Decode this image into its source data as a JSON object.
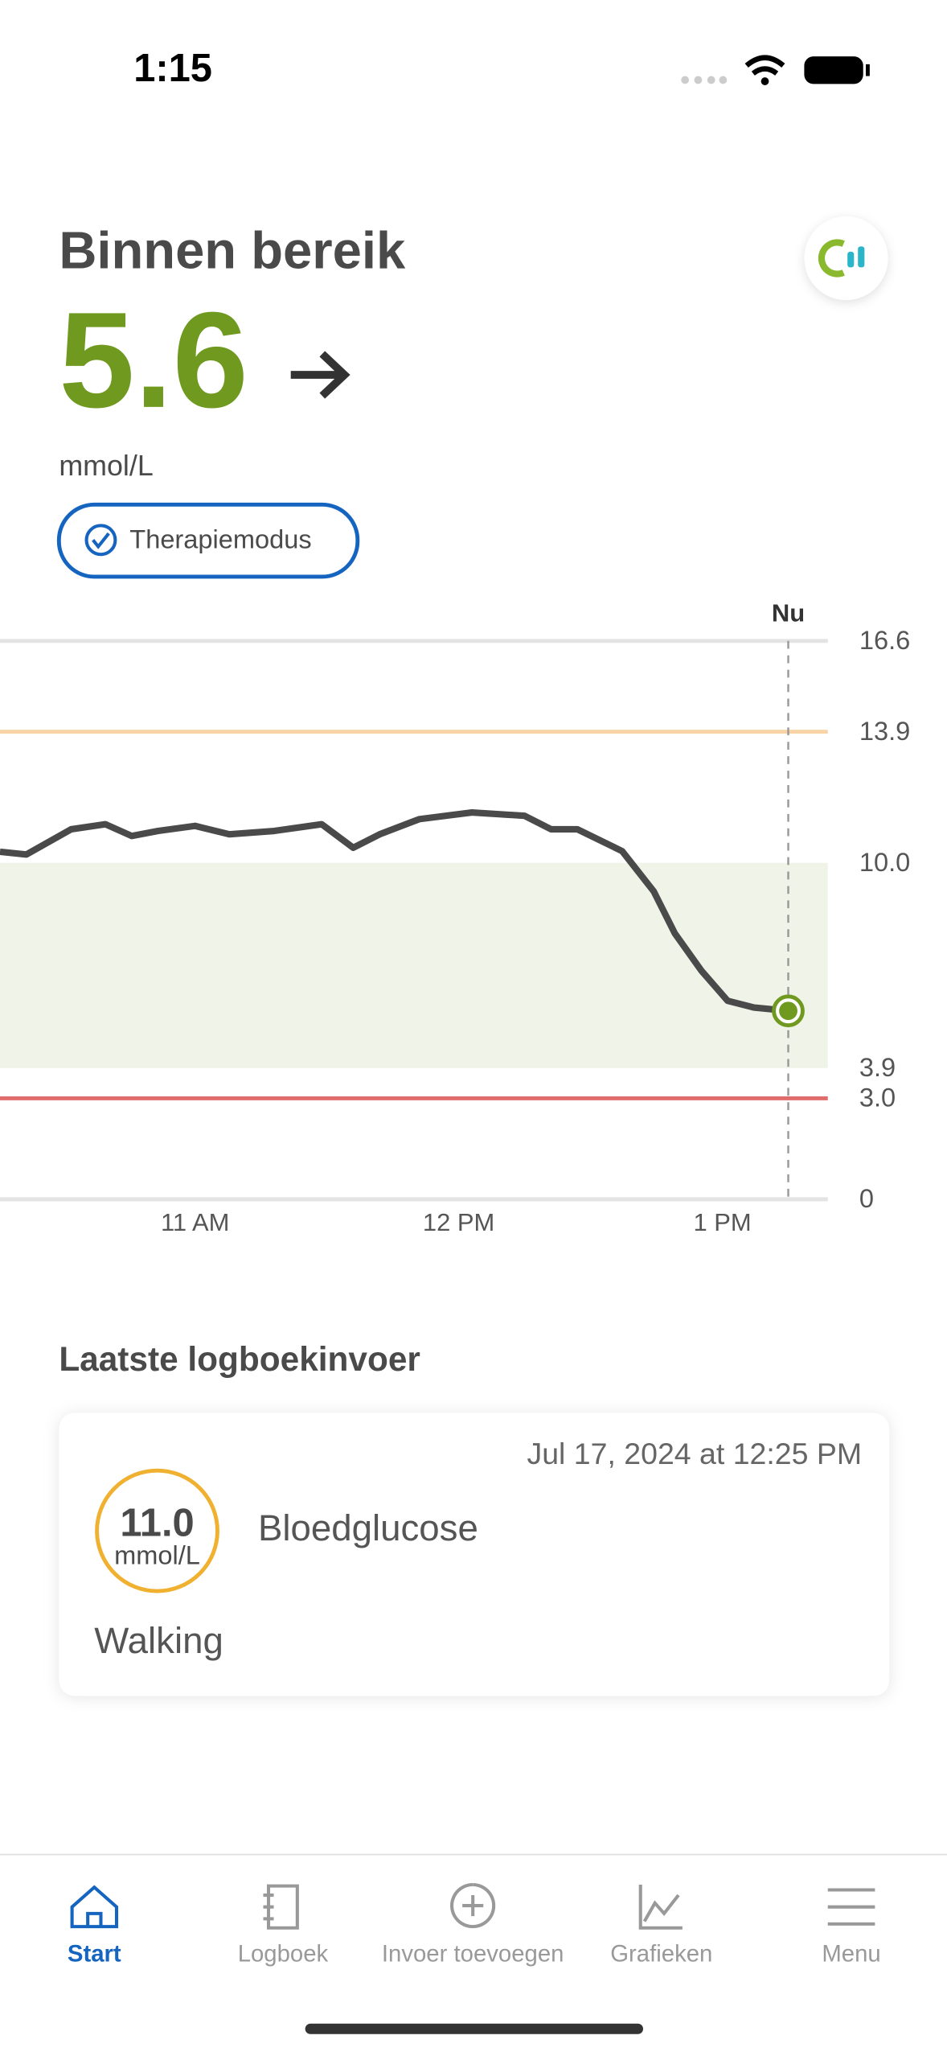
{
  "status_bar": {
    "time": "1:15"
  },
  "header": {
    "title": "Binnen bereik",
    "value": "5.6",
    "unit": "mmol/L",
    "mode": "Therapiemodus"
  },
  "chart_data": {
    "type": "line",
    "x": [
      10.26,
      10.36,
      10.53,
      10.66,
      10.76,
      10.86,
      11.0,
      11.13,
      11.3,
      11.48,
      11.6,
      11.7,
      11.85,
      12.05,
      12.25,
      12.35,
      12.45,
      12.62,
      12.74,
      12.82,
      12.92,
      13.02,
      13.12,
      13.25
    ],
    "series": [
      {
        "color": "#4a4a4a",
        "values": [
          10.33,
          10.25,
          11.0,
          11.15,
          10.8,
          10.95,
          11.1,
          10.85,
          10.95,
          11.15,
          10.45,
          10.85,
          11.3,
          11.5,
          11.4,
          11.0,
          11.0,
          10.35,
          9.15,
          7.9,
          6.8,
          5.9,
          5.7,
          5.6
        ]
      }
    ],
    "xlim": [
      10.26,
      13.4
    ],
    "xticks": [
      {
        "value": 11,
        "label": "11 AM"
      },
      {
        "value": 12,
        "label": "12 PM"
      },
      {
        "value": 13,
        "label": "1 PM"
      }
    ],
    "ylim": [
      0,
      16.6
    ],
    "yticks": [
      16.6,
      13.9,
      {
        "value": 10,
        "label": "10.0"
      },
      3.9,
      {
        "value": 3,
        "label": "3.0"
      },
      0
    ],
    "now_x": 13.25,
    "now_label": "Nu",
    "grid_color": "#e3e3e3",
    "high_color": "#f7d3a5",
    "low_color": "#e06c6c",
    "target_color": "#eff3e8",
    "marker_color": "#6f9a1f"
  },
  "logbook": {
    "title": "Laatste logboekinvoer",
    "date": "Jul 17, 2024 at 12:25 PM",
    "value": "11.0",
    "unit": "mmol/L",
    "type": "Bloedglucose",
    "note": "Walking"
  },
  "tabs": [
    "Start",
    "Logboek",
    "Invoer toevoegen",
    "Grafieken",
    "Menu"
  ]
}
